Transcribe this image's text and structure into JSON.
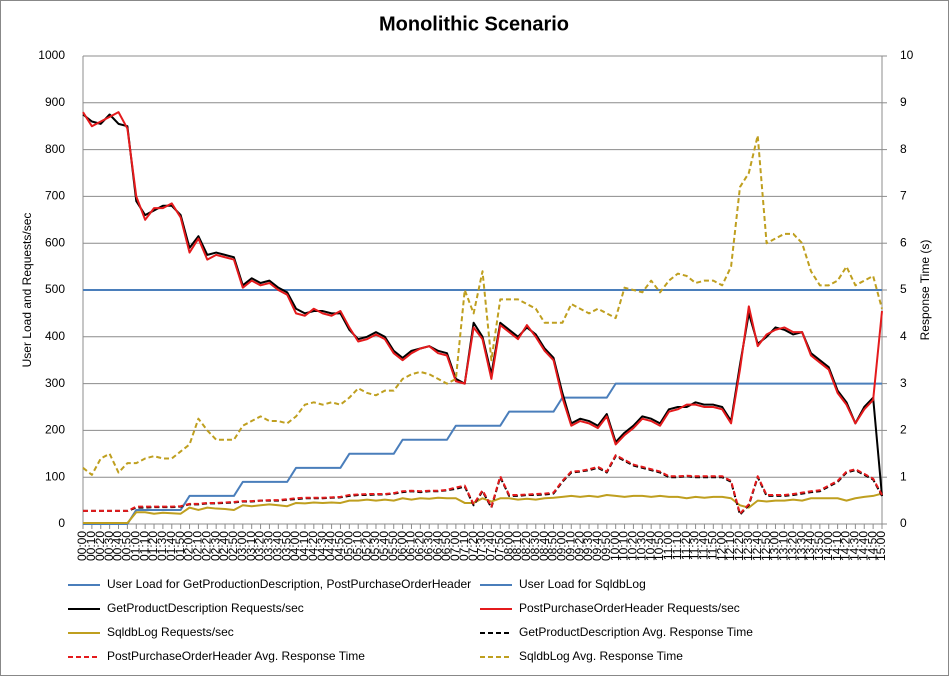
{
  "chart_data": {
    "type": "line",
    "title": "Monolithic Scenario",
    "y_label": "User Load and Requests/sec",
    "y2_label": "Response Time (s)",
    "categories": [
      "00:00",
      "00:10",
      "00:20",
      "00:30",
      "00:40",
      "00:50",
      "01:00",
      "01:10",
      "01:20",
      "01:30",
      "01:40",
      "01:50",
      "02:00",
      "02:10",
      "02:20",
      "02:30",
      "02:40",
      "02:50",
      "03:00",
      "03:10",
      "03:20",
      "03:30",
      "03:40",
      "03:50",
      "04:00",
      "04:10",
      "04:20",
      "04:30",
      "04:40",
      "04:50",
      "05:00",
      "05:10",
      "05:20",
      "05:30",
      "05:40",
      "05:50",
      "06:00",
      "06:10",
      "06:20",
      "06:30",
      "06:40",
      "06:50",
      "07:00",
      "07:10",
      "07:20",
      "07:30",
      "07:40",
      "07:50",
      "08:00",
      "08:10",
      "08:20",
      "08:30",
      "08:40",
      "08:50",
      "09:00",
      "09:10",
      "09:20",
      "09:30",
      "09:40",
      "09:50",
      "10:00",
      "10:10",
      "10:20",
      "10:30",
      "10:40",
      "10:50",
      "11:00",
      "11:10",
      "11:20",
      "11:30",
      "11:40",
      "11:50",
      "12:00",
      "12:10",
      "12:20",
      "12:30",
      "12:40",
      "12:50",
      "13:00",
      "13:10",
      "13:20",
      "13:30",
      "13:40",
      "13:50",
      "14:00",
      "14:10",
      "14:20",
      "14:30",
      "14:40",
      "14:50",
      "15:00"
    ],
    "ylim": [
      0,
      1000
    ],
    "yticks": [
      0,
      100,
      200,
      300,
      400,
      500,
      600,
      700,
      800,
      900,
      1000
    ],
    "y2lim": [
      0,
      10
    ],
    "y2ticks": [
      0,
      1,
      2,
      3,
      4,
      5,
      6,
      7,
      8,
      9,
      10
    ],
    "grid": true,
    "legend": "bottom",
    "series": [
      {
        "name": "User Load for GetProductionDescription, PostPurchaseOrderHeader",
        "color": "#4a7ebb",
        "dashed": false,
        "values": [
          500,
          500,
          500,
          500,
          500,
          500,
          500,
          500,
          500,
          500,
          500,
          500,
          500,
          500,
          500,
          500,
          500,
          500,
          500,
          500,
          500,
          500,
          500,
          500,
          500,
          500,
          500,
          500,
          500,
          500,
          500,
          500,
          500,
          500,
          500,
          500,
          500,
          500,
          500,
          500,
          500,
          500,
          500,
          500,
          500,
          500,
          500,
          500,
          500,
          500,
          500,
          500,
          500,
          500,
          500,
          500,
          500,
          500,
          500,
          500,
          500,
          500,
          500,
          500,
          500,
          500,
          500,
          500,
          500,
          500,
          500,
          500,
          500,
          500,
          500,
          500,
          500,
          500,
          500,
          500,
          500,
          500,
          500,
          500,
          500,
          500,
          500,
          500,
          500,
          500,
          500
        ]
      },
      {
        "name": "User Load for SqldbLog",
        "color": "#4a7ebb",
        "dashed": false,
        "values": [
          0,
          0,
          0,
          0,
          0,
          0,
          30,
          30,
          30,
          30,
          30,
          30,
          60,
          60,
          60,
          60,
          60,
          60,
          90,
          90,
          90,
          90,
          90,
          90,
          120,
          120,
          120,
          120,
          120,
          120,
          150,
          150,
          150,
          150,
          150,
          150,
          180,
          180,
          180,
          180,
          180,
          180,
          210,
          210,
          210,
          210,
          210,
          210,
          240,
          240,
          240,
          240,
          240,
          240,
          270,
          270,
          270,
          270,
          270,
          270,
          300,
          300,
          300,
          300,
          300,
          300,
          300,
          300,
          300,
          300,
          300,
          300,
          300,
          300,
          300,
          300,
          300,
          300,
          300,
          300,
          300,
          300,
          300,
          300,
          300,
          300,
          300,
          300,
          300,
          300,
          300
        ]
      },
      {
        "name": "GetProductDescription Requests/sec",
        "color": "#000000",
        "dashed": false,
        "values": [
          875,
          860,
          855,
          875,
          855,
          850,
          690,
          660,
          670,
          680,
          680,
          660,
          590,
          615,
          575,
          580,
          575,
          570,
          510,
          525,
          515,
          520,
          505,
          495,
          460,
          450,
          455,
          455,
          450,
          450,
          415,
          395,
          400,
          410,
          400,
          370,
          355,
          370,
          375,
          380,
          370,
          365,
          310,
          300,
          430,
          400,
          320,
          430,
          415,
          400,
          420,
          405,
          375,
          355,
          280,
          215,
          225,
          220,
          210,
          235,
          175,
          195,
          210,
          230,
          225,
          215,
          245,
          250,
          250,
          260,
          255,
          255,
          250,
          220,
          340,
          450,
          385,
          400,
          420,
          415,
          405,
          410,
          365,
          350,
          335,
          285,
          260,
          215,
          250,
          270,
          60
        ]
      },
      {
        "name": "PostPurchaseOrderHeader Requests/sec",
        "color": "#e41a1c",
        "dashed": false,
        "values": [
          880,
          850,
          860,
          870,
          880,
          845,
          700,
          650,
          675,
          675,
          685,
          655,
          580,
          610,
          565,
          575,
          570,
          565,
          505,
          520,
          510,
          515,
          500,
          490,
          450,
          445,
          460,
          450,
          445,
          455,
          420,
          390,
          395,
          405,
          395,
          365,
          350,
          365,
          375,
          380,
          365,
          360,
          305,
          300,
          420,
          395,
          310,
          425,
          410,
          395,
          425,
          400,
          370,
          350,
          270,
          210,
          220,
          215,
          205,
          230,
          170,
          190,
          205,
          225,
          220,
          210,
          240,
          245,
          255,
          255,
          250,
          250,
          245,
          215,
          330,
          465,
          380,
          405,
          415,
          420,
          410,
          410,
          360,
          345,
          330,
          280,
          255,
          215,
          245,
          265,
          455
        ]
      },
      {
        "name": "SqldbLog Requests/sec",
        "color": "#bf9f1f",
        "dashed": false,
        "values": [
          2,
          2,
          2,
          2,
          2,
          2,
          25,
          25,
          22,
          24,
          23,
          22,
          35,
          30,
          35,
          33,
          32,
          30,
          40,
          38,
          40,
          42,
          40,
          38,
          45,
          44,
          46,
          45,
          46,
          45,
          50,
          50,
          52,
          50,
          52,
          50,
          55,
          52,
          55,
          54,
          56,
          55,
          55,
          45,
          45,
          55,
          48,
          55,
          55,
          52,
          54,
          52,
          55,
          56,
          58,
          60,
          58,
          60,
          58,
          62,
          60,
          58,
          60,
          60,
          58,
          60,
          58,
          58,
          55,
          58,
          56,
          58,
          58,
          55,
          40,
          35,
          50,
          48,
          50,
          50,
          52,
          50,
          55,
          55,
          55,
          55,
          50,
          55,
          58,
          60,
          65
        ]
      },
      {
        "name": "GetProductDescription Avg. Response Time",
        "color": "#000000",
        "dashed": true,
        "axis": "y2",
        "values": [
          0.28,
          0.28,
          0.28,
          0.28,
          0.28,
          0.28,
          0.35,
          0.35,
          0.36,
          0.36,
          0.36,
          0.37,
          0.42,
          0.42,
          0.44,
          0.44,
          0.45,
          0.46,
          0.48,
          0.48,
          0.5,
          0.5,
          0.5,
          0.52,
          0.53,
          0.55,
          0.55,
          0.55,
          0.56,
          0.57,
          0.6,
          0.62,
          0.62,
          0.63,
          0.63,
          0.65,
          0.68,
          0.7,
          0.68,
          0.7,
          0.7,
          0.72,
          0.75,
          0.8,
          0.4,
          0.7,
          0.35,
          1.0,
          0.6,
          0.6,
          0.62,
          0.62,
          0.63,
          0.65,
          0.9,
          1.1,
          1.12,
          1.15,
          1.2,
          1.1,
          1.45,
          1.35,
          1.25,
          1.2,
          1.15,
          1.1,
          1.0,
          1.0,
          1.02,
          1.0,
          1.0,
          1.0,
          1.0,
          0.9,
          0.2,
          0.4,
          1.0,
          0.6,
          0.6,
          0.6,
          0.62,
          0.65,
          0.68,
          0.7,
          0.8,
          0.9,
          1.1,
          1.15,
          1.05,
          0.95,
          0.6
        ]
      },
      {
        "name": "PostPurchaseOrderHeader Avg. Response Time",
        "color": "#e41a1c",
        "dashed": true,
        "axis": "y2",
        "values": [
          0.28,
          0.28,
          0.28,
          0.28,
          0.28,
          0.28,
          0.37,
          0.37,
          0.37,
          0.37,
          0.37,
          0.38,
          0.43,
          0.43,
          0.45,
          0.45,
          0.46,
          0.47,
          0.49,
          0.49,
          0.5,
          0.51,
          0.51,
          0.53,
          0.55,
          0.56,
          0.56,
          0.56,
          0.57,
          0.58,
          0.62,
          0.63,
          0.64,
          0.64,
          0.64,
          0.66,
          0.7,
          0.71,
          0.7,
          0.71,
          0.71,
          0.73,
          0.78,
          0.82,
          0.42,
          0.72,
          0.37,
          1.02,
          0.62,
          0.62,
          0.63,
          0.64,
          0.65,
          0.67,
          0.92,
          1.12,
          1.13,
          1.17,
          1.22,
          1.12,
          1.47,
          1.37,
          1.27,
          1.22,
          1.17,
          1.12,
          1.02,
          1.02,
          1.03,
          1.02,
          1.02,
          1.02,
          1.02,
          0.92,
          0.22,
          0.42,
          1.02,
          0.62,
          0.62,
          0.62,
          0.64,
          0.67,
          0.7,
          0.72,
          0.82,
          0.92,
          1.12,
          1.17,
          1.07,
          0.97,
          0.62
        ]
      },
      {
        "name": "SqldbLog Avg. Response Time",
        "color": "#bf9f1f",
        "dashed": true,
        "axis": "y2",
        "values": [
          1.2,
          1.05,
          1.4,
          1.5,
          1.1,
          1.3,
          1.3,
          1.4,
          1.45,
          1.4,
          1.4,
          1.55,
          1.7,
          2.25,
          2.0,
          1.8,
          1.8,
          1.8,
          2.1,
          2.2,
          2.3,
          2.2,
          2.2,
          2.15,
          2.3,
          2.55,
          2.6,
          2.55,
          2.6,
          2.55,
          2.7,
          2.9,
          2.8,
          2.75,
          2.85,
          2.85,
          3.1,
          3.2,
          3.25,
          3.2,
          3.1,
          3.0,
          3.1,
          5.0,
          4.5,
          5.4,
          3.5,
          4.8,
          4.8,
          4.8,
          4.7,
          4.6,
          4.3,
          4.3,
          4.3,
          4.7,
          4.6,
          4.5,
          4.6,
          4.5,
          4.4,
          5.05,
          5.0,
          4.95,
          5.2,
          4.95,
          5.2,
          5.35,
          5.3,
          5.15,
          5.2,
          5.2,
          5.1,
          5.5,
          7.2,
          7.5,
          8.3,
          6.0,
          6.1,
          6.2,
          6.2,
          6.0,
          5.4,
          5.1,
          5.1,
          5.2,
          5.5,
          5.1,
          5.2,
          5.3,
          4.6
        ]
      }
    ]
  }
}
